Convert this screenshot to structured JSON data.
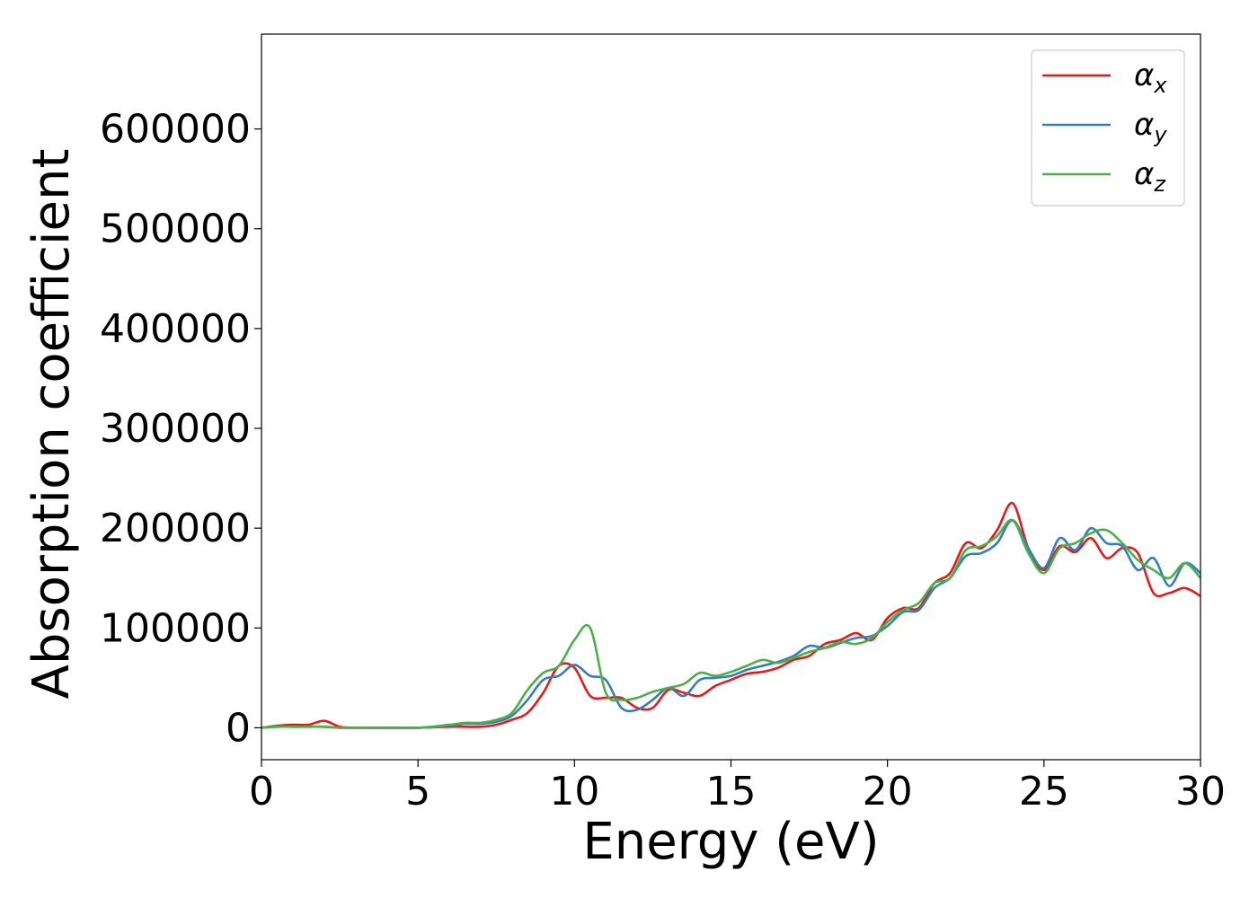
{
  "chart_data": {
    "type": "line",
    "xlabel": "Energy (eV)",
    "ylabel": "Absorption coefficient",
    "xlim": [
      0,
      30
    ],
    "ylim": [
      -32000,
      695000
    ],
    "xticks": [
      0,
      5,
      10,
      15,
      20,
      25,
      30
    ],
    "xtick_labels": [
      "0",
      "5",
      "10",
      "15",
      "20",
      "25",
      "30"
    ],
    "yticks": [
      0,
      100000,
      200000,
      300000,
      400000,
      500000,
      600000
    ],
    "ytick_labels": [
      "0",
      "100000",
      "200000",
      "300000",
      "400000",
      "500000",
      "600000"
    ],
    "grid": false,
    "legend_position": "top-right",
    "x": [
      0,
      0.5,
      1,
      1.5,
      2,
      2.5,
      3,
      4,
      5,
      6,
      6.5,
      7,
      7.5,
      8,
      8.5,
      9,
      9.5,
      10,
      10.5,
      11,
      11.5,
      12,
      12.5,
      13,
      13.5,
      14,
      14.5,
      15,
      15.5,
      16,
      16.5,
      17,
      17.5,
      18,
      18.5,
      19,
      19.5,
      20,
      20.5,
      21,
      21.5,
      22,
      22.5,
      23,
      23.5,
      24,
      24.5,
      25,
      25.5,
      26,
      26.5,
      27,
      27.5,
      28,
      28.5,
      29,
      29.5,
      30
    ],
    "series": [
      {
        "name": "α",
        "subscript": "x",
        "color": "#e41a1c",
        "values": [
          0,
          2000,
          3000,
          3000,
          7000,
          1000,
          0,
          0,
          0,
          1000,
          1000,
          1000,
          3000,
          8000,
          15000,
          35000,
          62000,
          60000,
          32000,
          30000,
          30000,
          20000,
          20000,
          38000,
          35000,
          32000,
          42000,
          48000,
          54000,
          56000,
          60000,
          68000,
          72000,
          84000,
          88000,
          95000,
          88000,
          110000,
          120000,
          120000,
          145000,
          155000,
          185000,
          180000,
          198000,
          225000,
          180000,
          158000,
          182000,
          176000,
          190000,
          170000,
          180000,
          175000,
          135000,
          135000,
          140000,
          132000
        ]
      },
      {
        "name": "α",
        "subscript": "y",
        "color": "#377eb8",
        "values": [
          0,
          1000,
          1000,
          1000,
          1000,
          0,
          0,
          0,
          0,
          2000,
          4000,
          4000,
          6000,
          12000,
          28000,
          48000,
          52000,
          63000,
          52000,
          48000,
          20000,
          18000,
          28000,
          40000,
          32000,
          48000,
          50000,
          52000,
          58000,
          62000,
          66000,
          72000,
          82000,
          80000,
          85000,
          90000,
          92000,
          102000,
          116000,
          118000,
          140000,
          150000,
          172000,
          175000,
          185000,
          208000,
          180000,
          160000,
          190000,
          178000,
          200000,
          185000,
          182000,
          158000,
          170000,
          142000,
          165000,
          155000
        ]
      },
      {
        "name": "α",
        "subscript": "z",
        "color": "#4daf4a",
        "values": [
          0,
          1000,
          1000,
          1000,
          1000,
          0,
          0,
          0,
          0,
          3000,
          5000,
          5000,
          8000,
          15000,
          38000,
          55000,
          62000,
          88000,
          100000,
          35000,
          28000,
          30000,
          36000,
          40000,
          44000,
          55000,
          52000,
          56000,
          62000,
          68000,
          65000,
          70000,
          76000,
          80000,
          86000,
          84000,
          90000,
          106000,
          118000,
          125000,
          145000,
          150000,
          178000,
          182000,
          192000,
          208000,
          175000,
          155000,
          180000,
          185000,
          195000,
          198000,
          185000,
          168000,
          158000,
          150000,
          165000,
          150000
        ]
      }
    ]
  }
}
